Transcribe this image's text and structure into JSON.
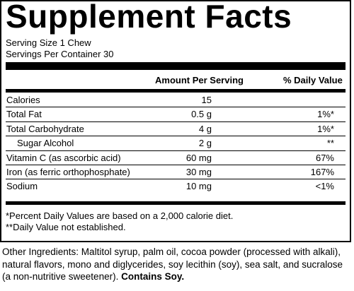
{
  "title": "Supplement Facts",
  "serving_size": "Serving Size 1 Chew",
  "servings_per_container": "Servings Per Container 30",
  "headers": {
    "amount": "Amount Per Serving",
    "daily_value": "% Daily Value"
  },
  "rows": [
    {
      "label": "Calories",
      "amount": "15",
      "dv": ""
    },
    {
      "label": "Total Fat",
      "amount": "0.5 g",
      "dv": "1%*"
    },
    {
      "label": "Total Carbohydrate",
      "amount": "4 g",
      "dv": "1%*"
    },
    {
      "label": "Sugar Alcohol",
      "amount": "2 g",
      "dv": "**"
    },
    {
      "label": "Vitamin C (as ascorbic acid)",
      "amount": "60 mg",
      "dv": "67%"
    },
    {
      "label": "Iron (as ferric orthophosphate)",
      "amount": "30 mg",
      "dv": "167%"
    },
    {
      "label": "Sodium",
      "amount": "10 mg",
      "dv": "<1%"
    }
  ],
  "footnotes": [
    "*Percent Daily Values are based on a 2,000 calorie diet.",
    "**Daily Value not established."
  ],
  "ingredients": {
    "text": "Other Ingredients: Maltitol syrup, palm oil, cocoa powder (processed with alkali), natural flavors, mono and diglycerides, soy lecithin (soy), sea salt, and sucralose (a non-nutritive sweetener).",
    "allergen": "Contains Soy."
  }
}
